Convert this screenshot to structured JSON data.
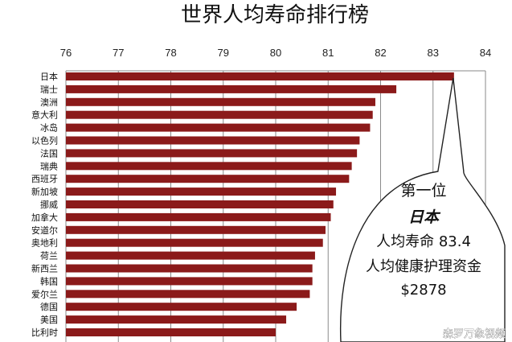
{
  "chart_data": {
    "type": "bar",
    "orientation": "horizontal",
    "title": "世界人均寿命排行榜",
    "xlabel": "",
    "ylabel": "",
    "xlim": [
      76,
      84
    ],
    "x_ticks": [
      "76",
      "77",
      "78",
      "79",
      "80",
      "81",
      "82",
      "83",
      "84"
    ],
    "grid": true,
    "bar_color": "#8b1a1a",
    "categories": [
      "日本",
      "瑞士",
      "澳洲",
      "意大利",
      "冰岛",
      "以色列",
      "法国",
      "瑞典",
      "西班牙",
      "新加坡",
      "挪威",
      "加拿大",
      "安道尔",
      "奥地利",
      "荷兰",
      "新西兰",
      "韩国",
      "爱尔兰",
      "德国",
      "美国",
      "比利时"
    ],
    "values": [
      83.4,
      82.3,
      81.9,
      81.85,
      81.8,
      81.6,
      81.55,
      81.45,
      81.4,
      81.15,
      81.1,
      81.05,
      80.95,
      80.9,
      80.75,
      80.7,
      80.7,
      80.65,
      80.4,
      80.2,
      80.0
    ],
    "annotation": {
      "line1": "第一位",
      "line2": "日本",
      "line3": "人均寿命 83.4",
      "line4": "人均健康护理资金",
      "line5": "$2878"
    }
  },
  "watermark": "森罗万象视频"
}
